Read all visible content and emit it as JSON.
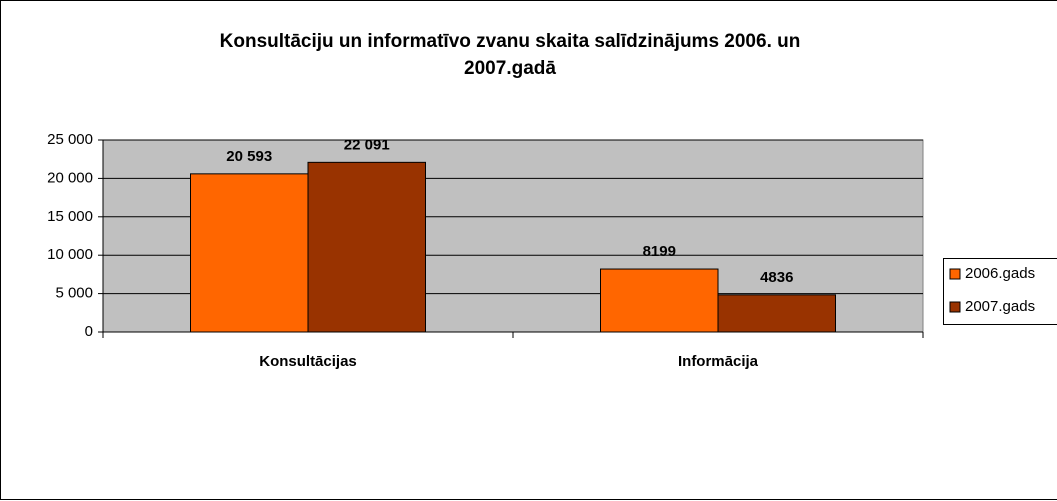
{
  "chart_data": {
    "type": "bar",
    "title": "Konsultāciju un informatīvo zvanu skaita salīdzinājums 2006. un 2007.gadā",
    "categories": [
      "Konsultācijas",
      "Informācija"
    ],
    "series": [
      {
        "name": "2006.gads",
        "color": "#ff6600",
        "values": [
          20593,
          8199
        ],
        "value_labels": [
          "20 593",
          "8199"
        ]
      },
      {
        "name": "2007.gads",
        "color": "#993300",
        "values": [
          22091,
          4836
        ],
        "value_labels": [
          "22 091",
          "4836"
        ]
      }
    ],
    "ylim": [
      0,
      25000
    ],
    "yticks": [
      0,
      {
        "value": 5000,
        "label": "5 000"
      },
      {
        "value": 10000,
        "label": "10 000"
      },
      {
        "value": 15000,
        "label": "15 000"
      },
      {
        "value": 20000,
        "label": "20 000"
      },
      {
        "value": 25000,
        "label": "25 000"
      }
    ],
    "grid": true,
    "legend": "right"
  }
}
